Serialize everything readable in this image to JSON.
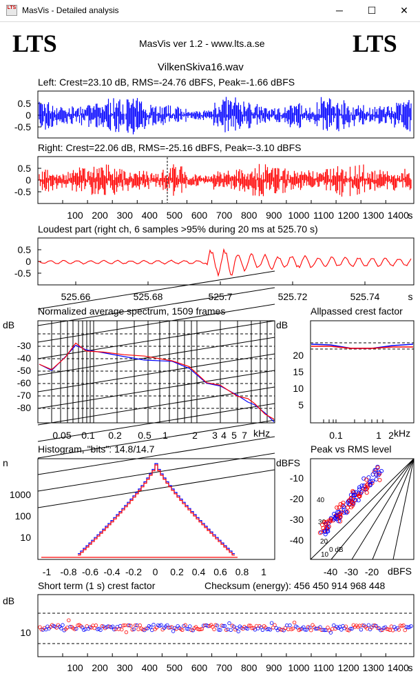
{
  "window": {
    "title": "MasVis - Detailed analysis",
    "icon_text": "LTS",
    "controls": {
      "minimize": "─",
      "maximize": "☐",
      "close": "✕"
    }
  },
  "header": {
    "logo_left": "LTS",
    "logo_right": "LTS",
    "version": "MasVis ver 1.2 - www.lts.a.se",
    "filename": "VilkenSkiva16.wav"
  },
  "left_channel": {
    "label": "Left: Crest=23.10 dB, RMS=-24.76 dBFS, Peak=-1.66 dBFS",
    "yticks": [
      "0.5",
      "0",
      "-0.5"
    ]
  },
  "right_channel": {
    "label": "Right: Crest=22.06 dB, RMS=-25.16 dBFS, Peak=-3.10 dBFS",
    "yticks": [
      "0.5",
      "0",
      "-0.5"
    ],
    "xticks": [
      "100",
      "200",
      "300",
      "400",
      "500",
      "600",
      "700",
      "800",
      "900",
      "1000",
      "1100",
      "1200",
      "1300",
      "1400"
    ],
    "xunit": "s"
  },
  "loudest": {
    "label": "Loudest part (right ch, 6 samples >95% during 20 ms at 525.70 s)",
    "yticks": [
      "0.5",
      "0",
      "-0.5"
    ],
    "xticks": [
      "525.66",
      "525.68",
      "525.7",
      "525.72",
      "525.74"
    ],
    "xunit": "s"
  },
  "spectrum": {
    "label": "Normalized average spectrum, 1509 frames",
    "yunit": "dB",
    "yticks": [
      "-30",
      "-40",
      "-50",
      "-60",
      "-70",
      "-80"
    ],
    "xticks": [
      "0.05",
      "0.1",
      "0.2",
      "0.5",
      "1",
      "2",
      "3",
      "4",
      "5",
      "7"
    ],
    "xunit": "kHz"
  },
  "allpass": {
    "label": "Allpassed crest factor",
    "yunit": "dB",
    "yticks": [
      "20",
      "15",
      "10",
      "5"
    ],
    "xticks": [
      "0.1",
      "1",
      "2"
    ],
    "xunit": "kHz"
  },
  "histogram": {
    "label": "Histogram, \"bits\": 14.8/14.7",
    "yunit": "n",
    "yticks": [
      "1000",
      "100",
      "10"
    ],
    "xticks": [
      "-1",
      "-0.8",
      "-0.6",
      "-0.4",
      "-0.2",
      "0",
      "0.2",
      "0.4",
      "0.6",
      "0.8",
      "1"
    ]
  },
  "peak_rms": {
    "label": "Peak vs RMS level",
    "yunit": "dBFS",
    "yticks": [
      "-10",
      "-20",
      "-30",
      "-40"
    ],
    "xticks": [
      "-40",
      "-30",
      "-20"
    ],
    "xunit": "dBFS",
    "diag_labels": [
      "40",
      "30",
      "20",
      "10",
      "0 dB"
    ]
  },
  "short_term": {
    "label": "Short term (1 s) crest factor",
    "checksum": "Checksum (energy):   456 450 914 968 448",
    "yunit": "dB",
    "yticks": [
      "10"
    ],
    "xticks": [
      "100",
      "200",
      "300",
      "400",
      "500",
      "600",
      "700",
      "800",
      "900",
      "1000",
      "1100",
      "1200",
      "1300",
      "1400"
    ],
    "xunit": "s"
  },
  "colors": {
    "left": "#0000ff",
    "right": "#ff0000"
  }
}
